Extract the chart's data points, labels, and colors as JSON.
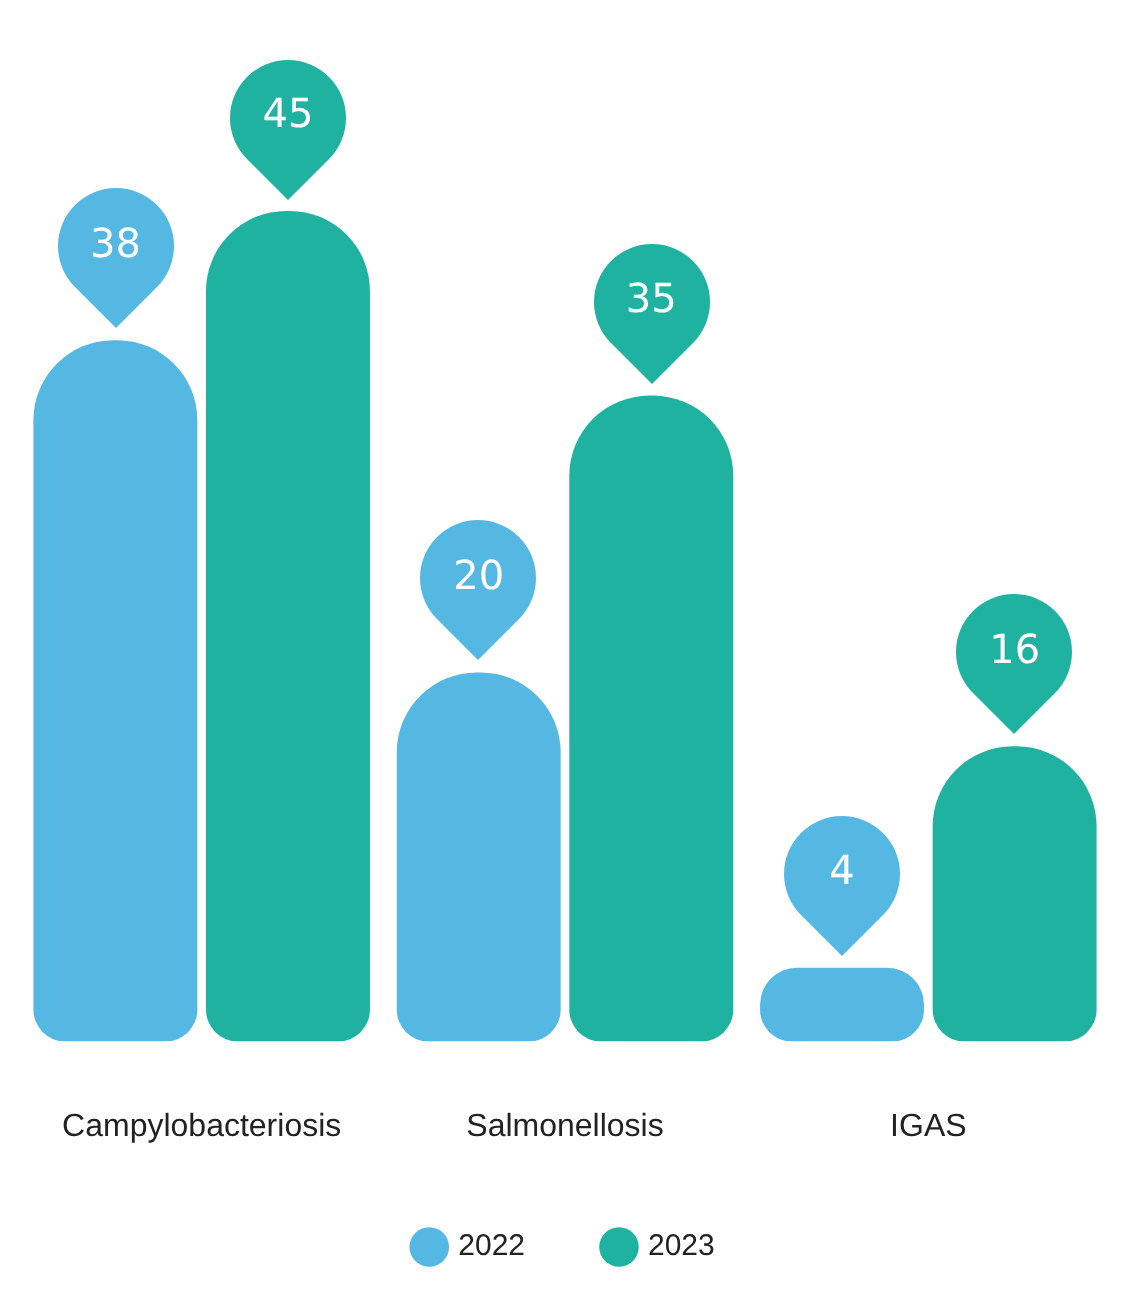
{
  "chart_data": {
    "type": "bar",
    "categories": [
      "Campylobacteriosis",
      "Salmonellosis",
      "IGAS"
    ],
    "series": [
      {
        "name": "2022",
        "color": "#55b8e3",
        "values": [
          38,
          20,
          4
        ]
      },
      {
        "name": "2023",
        "color": "#20b2a0",
        "values": [
          45,
          35,
          16
        ]
      }
    ],
    "data_labels": true,
    "legend": "bottom",
    "grid": false
  }
}
